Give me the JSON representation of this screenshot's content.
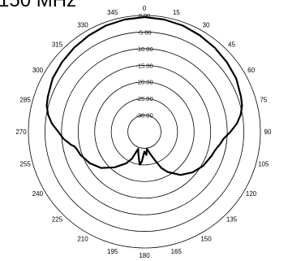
{
  "chart_data": {
    "type": "polar-line",
    "title": "150 MHz",
    "radial_axis": {
      "unit": "dB",
      "range": [
        -35,
        0
      ],
      "tick_labels": [
        "0.00",
        "-5.00",
        "-10.00",
        "-15.00",
        "-20.00",
        "-25.00",
        "-30.00"
      ]
    },
    "angular_axis": {
      "unit": "degrees",
      "zero_at": "top",
      "direction": "clockwise",
      "tick_labels": [
        "0",
        "15",
        "30",
        "45",
        "60",
        "75",
        "90",
        "105",
        "120",
        "135",
        "150",
        "165",
        "180",
        "195",
        "210",
        "225",
        "240",
        "255",
        "270",
        "285",
        "300",
        "315",
        "330",
        "345"
      ]
    },
    "series": [
      {
        "angles": [
          0,
          10,
          20,
          30,
          40,
          50,
          60,
          70,
          75,
          80,
          85,
          90,
          95,
          100,
          102,
          105,
          110,
          120,
          130,
          140,
          150,
          155,
          160,
          165,
          170,
          172,
          175,
          180,
          185,
          188,
          190,
          195,
          200,
          205,
          210,
          220,
          230,
          240,
          250,
          255,
          258,
          260,
          265,
          270,
          275,
          280,
          285,
          290,
          300,
          310,
          320,
          330,
          340,
          350
        ],
        "values": [
          -0.5,
          -0.7,
          -1.0,
          -1.5,
          -2.0,
          -2.5,
          -3.0,
          -4.0,
          -4.5,
          -5.5,
          -7.0,
          -9.0,
          -11.0,
          -12.0,
          -12.5,
          -13.0,
          -13.5,
          -14.5,
          -16.0,
          -18.0,
          -21.0,
          -23.0,
          -26.0,
          -28.0,
          -29.5,
          -29.8,
          -28.0,
          -29.0,
          -26.0,
          -25.0,
          -26.0,
          -28.0,
          -29.5,
          -26.0,
          -24.0,
          -21.0,
          -18.0,
          -16.0,
          -14.5,
          -14.0,
          -13.5,
          -12.5,
          -10.5,
          -9.0,
          -7.0,
          -5.5,
          -4.5,
          -4.0,
          -3.0,
          -2.5,
          -2.0,
          -1.5,
          -1.0,
          -0.7
        ]
      }
    ],
    "grid": true,
    "legend": "none"
  }
}
